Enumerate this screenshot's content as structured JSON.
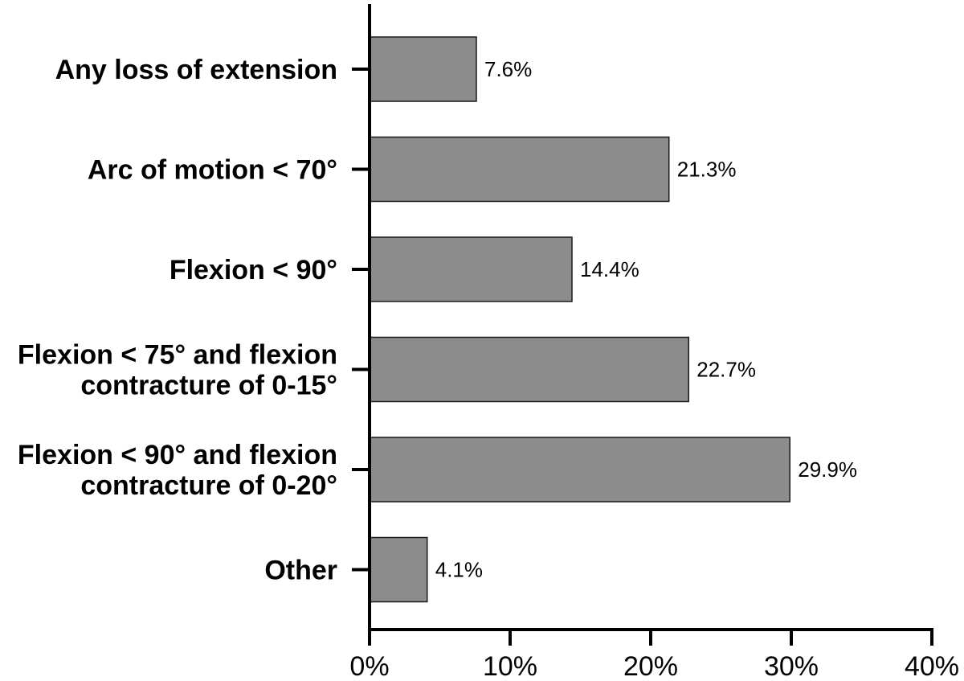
{
  "chart_data": {
    "type": "bar",
    "orientation": "horizontal",
    "categories": [
      [
        "Any loss of extension"
      ],
      [
        "Arc of motion < 70°"
      ],
      [
        "Flexion < 90°"
      ],
      [
        "Flexion < 75° and flexion",
        "contracture of 0-15°"
      ],
      [
        "Flexion < 90° and flexion",
        "contracture of 0-20°"
      ],
      [
        "Other"
      ]
    ],
    "values": [
      7.6,
      21.3,
      14.4,
      22.7,
      29.9,
      4.1
    ],
    "value_labels": [
      "7.6%",
      "21.3%",
      "14.4%",
      "22.7%",
      "29.9%",
      "4.1%"
    ],
    "title": "",
    "xlabel": "",
    "ylabel": "",
    "xlim": [
      0,
      40
    ],
    "x_ticks": [
      0,
      10,
      20,
      30,
      40
    ],
    "x_tick_labels": [
      "0%",
      "10%",
      "20%",
      "30%",
      "40%"
    ],
    "grid": false,
    "legend": "none",
    "bar_color": "#8c8c8c",
    "bar_edge_color": "#1a1a1a"
  }
}
